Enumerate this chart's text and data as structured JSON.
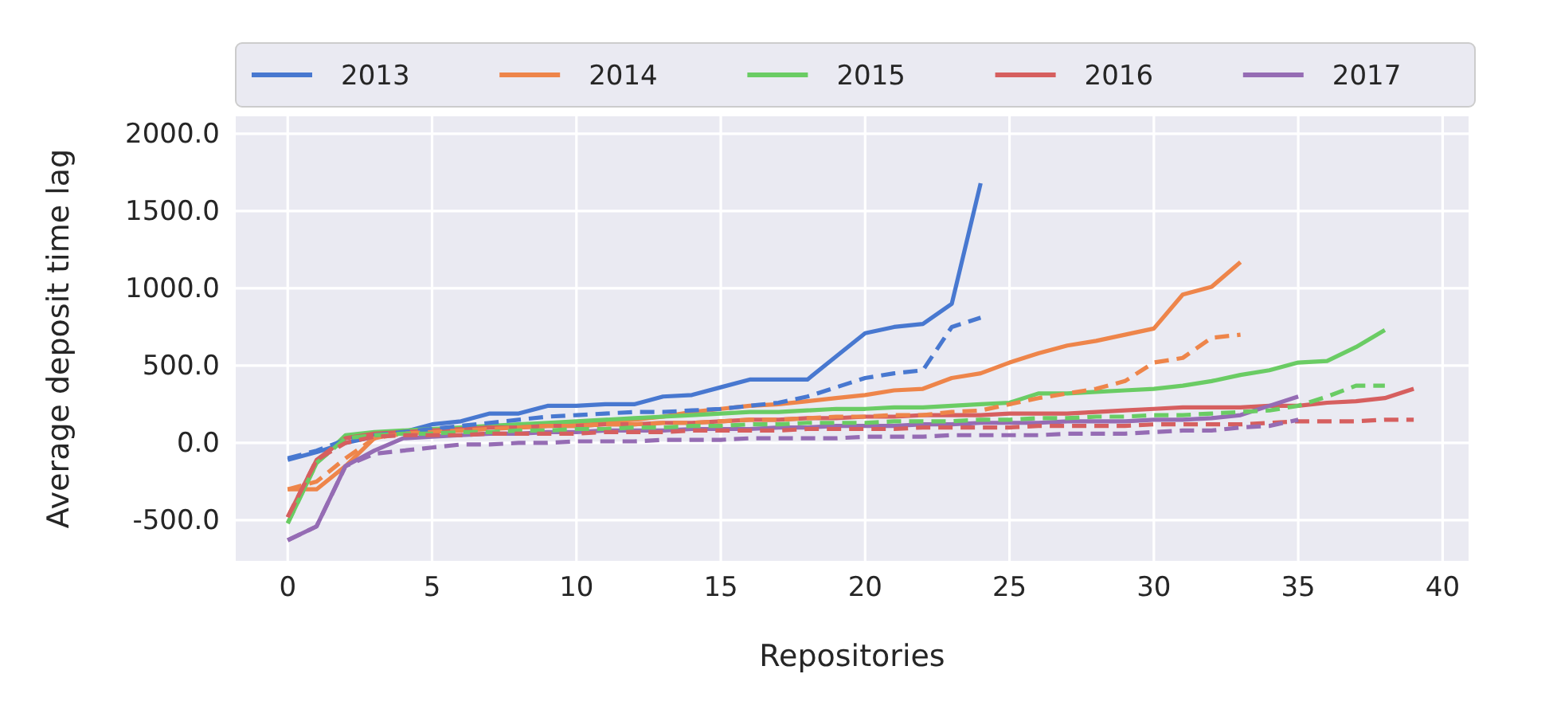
{
  "chart_data": {
    "type": "line",
    "xlabel": "Repositories",
    "ylabel": "Average deposit time lag",
    "xlim": [
      -1.8,
      40.9
    ],
    "xticks": [
      0,
      5,
      10,
      15,
      20,
      25,
      30,
      35,
      40
    ],
    "ylim": [
      -763,
      2113
    ],
    "yticks": [
      {
        "value": -500,
        "label": "-500.0"
      },
      {
        "value": 0,
        "label": "0.0"
      },
      {
        "value": 500,
        "label": "500.0"
      },
      {
        "value": 1000,
        "label": "1000.0"
      },
      {
        "value": 1500,
        "label": "1500.0"
      },
      {
        "value": 2000,
        "label": "2000.0"
      }
    ],
    "grid": true,
    "legend": "top",
    "series": [
      {
        "name": "2013",
        "color": "#4878d0",
        "line_style": "solid",
        "x": [
          0,
          1,
          2,
          3,
          4,
          5,
          6,
          7,
          8,
          9,
          10,
          11,
          12,
          13,
          14,
          15,
          16,
          17,
          18,
          19,
          20,
          21,
          22,
          23,
          24
        ],
        "values": [
          -110,
          -60,
          0,
          40,
          70,
          120,
          140,
          190,
          190,
          240,
          240,
          250,
          250,
          300,
          310,
          360,
          410,
          410,
          410,
          560,
          710,
          750,
          770,
          900,
          1680
        ]
      },
      {
        "name": "2014",
        "color": "#ee854a",
        "line_style": "solid",
        "x": [
          0,
          1,
          2,
          3,
          4,
          5,
          6,
          7,
          8,
          9,
          10,
          11,
          12,
          13,
          14,
          15,
          16,
          17,
          18,
          19,
          20,
          21,
          22,
          23,
          24,
          25,
          26,
          27,
          28,
          29,
          30,
          31,
          32,
          33
        ],
        "values": [
          -300,
          -300,
          -150,
          30,
          70,
          80,
          90,
          100,
          110,
          120,
          130,
          140,
          150,
          170,
          200,
          220,
          240,
          250,
          270,
          290,
          310,
          340,
          350,
          420,
          450,
          520,
          580,
          630,
          660,
          700,
          740,
          960,
          1010,
          1170
        ]
      },
      {
        "name": "2015",
        "color": "#6acc64",
        "line_style": "solid",
        "x": [
          0,
          1,
          2,
          3,
          4,
          5,
          6,
          7,
          8,
          9,
          10,
          11,
          12,
          13,
          14,
          15,
          16,
          17,
          18,
          19,
          20,
          21,
          22,
          23,
          24,
          25,
          26,
          27,
          28,
          29,
          30,
          31,
          32,
          33,
          34,
          35,
          36,
          37,
          38
        ],
        "values": [
          -520,
          -130,
          50,
          70,
          80,
          90,
          100,
          110,
          120,
          130,
          140,
          150,
          160,
          170,
          180,
          190,
          200,
          200,
          210,
          220,
          220,
          230,
          230,
          240,
          250,
          260,
          320,
          320,
          330,
          340,
          350,
          370,
          400,
          440,
          470,
          520,
          530,
          620,
          730
        ]
      },
      {
        "name": "2016",
        "color": "#d65f5f",
        "line_style": "solid",
        "x": [
          0,
          1,
          2,
          3,
          4,
          5,
          6,
          7,
          8,
          9,
          10,
          11,
          12,
          13,
          14,
          15,
          16,
          17,
          18,
          19,
          20,
          21,
          22,
          23,
          24,
          25,
          26,
          27,
          28,
          29,
          30,
          31,
          32,
          33,
          34,
          35,
          36,
          37,
          38,
          39
        ],
        "values": [
          -480,
          -110,
          30,
          60,
          70,
          80,
          90,
          100,
          100,
          110,
          110,
          120,
          120,
          130,
          130,
          140,
          150,
          150,
          160,
          160,
          170,
          170,
          180,
          180,
          180,
          190,
          190,
          190,
          200,
          210,
          220,
          230,
          230,
          230,
          240,
          240,
          260,
          270,
          290,
          350
        ]
      },
      {
        "name": "2017",
        "color": "#956cb4",
        "line_style": "solid",
        "x": [
          0,
          1,
          2,
          3,
          4,
          5,
          6,
          7,
          8,
          9,
          10,
          11,
          12,
          13,
          14,
          15,
          16,
          17,
          18,
          19,
          20,
          21,
          22,
          23,
          24,
          25,
          26,
          27,
          28,
          29,
          30,
          31,
          32,
          33,
          34,
          35
        ],
        "values": [
          -630,
          -540,
          -150,
          -50,
          30,
          40,
          50,
          60,
          60,
          70,
          70,
          80,
          80,
          80,
          90,
          90,
          90,
          100,
          100,
          110,
          110,
          110,
          120,
          120,
          130,
          130,
          130,
          140,
          140,
          140,
          150,
          150,
          160,
          180,
          240,
          300
        ]
      },
      {
        "color": "#4878d0",
        "line_style": "dashed",
        "x": [
          0,
          1,
          2,
          3,
          4,
          5,
          6,
          7,
          8,
          9,
          10,
          11,
          12,
          13,
          14,
          15,
          16,
          17,
          18,
          19,
          20,
          21,
          22,
          23,
          24
        ],
        "values": [
          -100,
          -50,
          20,
          50,
          70,
          90,
          110,
          130,
          150,
          170,
          180,
          190,
          200,
          200,
          210,
          220,
          240,
          260,
          300,
          360,
          420,
          450,
          470,
          750,
          810
        ]
      },
      {
        "color": "#ee854a",
        "line_style": "dashed",
        "x": [
          0,
          1,
          2,
          3,
          4,
          5,
          6,
          7,
          8,
          9,
          10,
          11,
          12,
          13,
          14,
          15,
          16,
          17,
          18,
          19,
          20,
          21,
          22,
          23,
          24,
          25,
          26,
          27,
          28,
          29,
          30,
          31,
          32,
          33
        ],
        "values": [
          -300,
          -250,
          -100,
          30,
          60,
          70,
          80,
          90,
          100,
          110,
          110,
          120,
          120,
          130,
          130,
          140,
          150,
          150,
          160,
          170,
          170,
          180,
          180,
          200,
          210,
          250,
          290,
          320,
          350,
          400,
          520,
          550,
          680,
          700
        ]
      },
      {
        "color": "#6acc64",
        "line_style": "dashed",
        "x": [
          0,
          1,
          2,
          3,
          4,
          5,
          6,
          7,
          8,
          9,
          10,
          11,
          12,
          13,
          14,
          15,
          16,
          17,
          18,
          19,
          20,
          21,
          22,
          23,
          24,
          25,
          26,
          27,
          28,
          29,
          30,
          31,
          32,
          33,
          34,
          35,
          36,
          37,
          38
        ],
        "values": [
          -520,
          -130,
          30,
          50,
          60,
          60,
          70,
          70,
          80,
          80,
          90,
          90,
          100,
          100,
          110,
          110,
          120,
          120,
          130,
          130,
          130,
          140,
          140,
          140,
          150,
          150,
          160,
          160,
          170,
          170,
          180,
          180,
          190,
          200,
          210,
          240,
          300,
          370,
          370
        ]
      },
      {
        "color": "#d65f5f",
        "line_style": "dashed",
        "x": [
          0,
          1,
          2,
          3,
          4,
          5,
          6,
          7,
          8,
          9,
          10,
          11,
          12,
          13,
          14,
          15,
          16,
          17,
          18,
          19,
          20,
          21,
          22,
          23,
          24,
          25,
          26,
          27,
          28,
          29,
          30,
          31,
          32,
          33,
          34,
          35,
          36,
          37,
          38,
          39
        ],
        "values": [
          -480,
          -110,
          0,
          40,
          50,
          50,
          50,
          60,
          60,
          60,
          60,
          70,
          70,
          70,
          80,
          80,
          80,
          80,
          90,
          90,
          90,
          90,
          100,
          100,
          100,
          100,
          110,
          110,
          110,
          110,
          120,
          120,
          120,
          120,
          130,
          140,
          140,
          140,
          150,
          150
        ]
      },
      {
        "color": "#956cb4",
        "line_style": "dashed",
        "x": [
          0,
          1,
          2,
          3,
          4,
          5,
          6,
          7,
          8,
          9,
          10,
          11,
          12,
          13,
          14,
          15,
          16,
          17,
          18,
          19,
          20,
          21,
          22,
          23,
          24,
          25,
          26,
          27,
          28,
          29,
          30,
          31,
          32,
          33,
          34,
          35
        ],
        "values": [
          -630,
          -540,
          -150,
          -70,
          -50,
          -30,
          -10,
          -10,
          0,
          0,
          10,
          10,
          10,
          20,
          20,
          20,
          30,
          30,
          30,
          30,
          40,
          40,
          40,
          50,
          50,
          50,
          50,
          60,
          60,
          60,
          70,
          80,
          80,
          100,
          110,
          150
        ]
      }
    ]
  }
}
